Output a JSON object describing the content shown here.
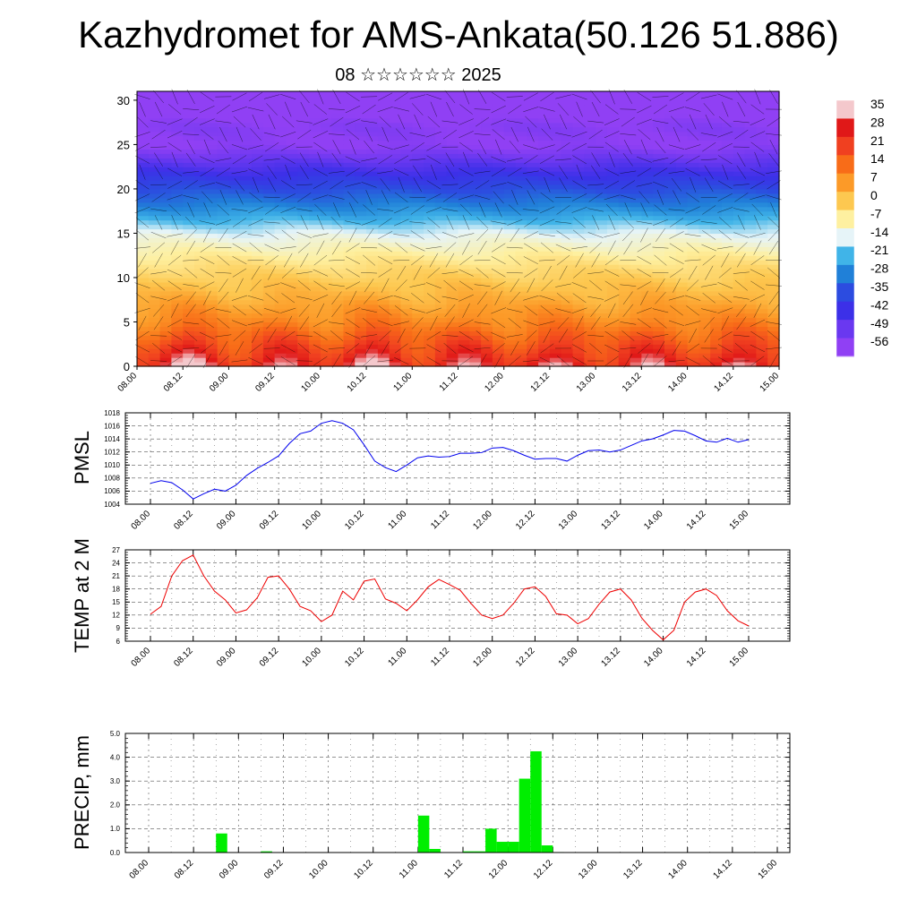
{
  "title": "Kazhydromet for AMS-Ankata(50.126 51.886)",
  "subtitle": "08 ☆☆☆☆☆☆ 2025",
  "time_ticks": [
    "08.00",
    "08.12",
    "09.00",
    "09.12",
    "10.00",
    "10.12",
    "11.00",
    "11.12",
    "12.00",
    "12.12",
    "13.00",
    "13.12",
    "14.00",
    "14.12",
    "15.00"
  ],
  "colors": {
    "pmsl_line": "#0000ee",
    "temp_line": "#ee0000",
    "precip_bar": "#00ee00",
    "frame": "#000000",
    "grid": "#555555"
  },
  "chart_data": [
    {
      "id": "cross-section",
      "type": "heatmap",
      "x_ticks_ref": "time_ticks",
      "y_ticks": [
        "0",
        "5",
        "10",
        "15",
        "20",
        "25",
        "30"
      ],
      "ylim": [
        0,
        31
      ],
      "colorbar_labels": [
        "35",
        "28",
        "21",
        "14",
        "7",
        "0",
        "-7",
        "-14",
        "-21",
        "-28",
        "-35",
        "-42",
        "-49",
        "-56"
      ],
      "colorbar_colors": [
        "#f4c8cc",
        "#e01818",
        "#f04020",
        "#f86c18",
        "#fc9a28",
        "#fdc850",
        "#fef0a0",
        "#e6f4f8",
        "#40b4e8",
        "#2080d8",
        "#2c4ce0",
        "#3c30e8",
        "#6a38f0",
        "#9040f4"
      ],
      "profile_levels_km": [
        0,
        1,
        3,
        5,
        8,
        11,
        13,
        15,
        17,
        19,
        21,
        23,
        25,
        27,
        29,
        31
      ],
      "profile_temps_c": [
        31,
        27,
        20,
        13,
        6,
        0,
        -5,
        -11,
        -20,
        -28,
        -36,
        -44,
        -53,
        -51,
        -56,
        -58
      ],
      "diurnal_amplitude_c": [
        8,
        6,
        4,
        2,
        1,
        0,
        0,
        0,
        0,
        0,
        0,
        0,
        0,
        0,
        0,
        0
      ],
      "warm_peaks": [
        "08.12",
        "10.12"
      ]
    },
    {
      "id": "pmsl",
      "type": "line",
      "ylabel": "PMSL",
      "y_ticks": [
        "1004",
        "1006",
        "1008",
        "1010",
        "1012",
        "1014",
        "1016",
        "1018"
      ],
      "ylim": [
        1004,
        1018
      ],
      "x": [
        0,
        3,
        6,
        9,
        12,
        15,
        18,
        21,
        24,
        27,
        30,
        33,
        36,
        39,
        42,
        45,
        48,
        51,
        54,
        57,
        60,
        63,
        66,
        69,
        72,
        75,
        78,
        81,
        84,
        87,
        90,
        93,
        96,
        99,
        102,
        105,
        108,
        111,
        114,
        117,
        120,
        123,
        126,
        129,
        132,
        135,
        138,
        141,
        144,
        147,
        150,
        153,
        156,
        159,
        162,
        165,
        168
      ],
      "values": [
        1007.2,
        1007.6,
        1007.3,
        1006.2,
        1004.8,
        1005.6,
        1006.3,
        1006.0,
        1006.9,
        1008.4,
        1009.5,
        1010.4,
        1011.4,
        1013.3,
        1014.8,
        1015.2,
        1016.4,
        1016.8,
        1016.4,
        1015.4,
        1013.1,
        1010.6,
        1009.6,
        1009.0,
        1010.0,
        1011.1,
        1011.4,
        1011.2,
        1011.3,
        1011.8,
        1011.8,
        1011.9,
        1012.6,
        1012.7,
        1012.2,
        1011.5,
        1010.9,
        1011.0,
        1011.0,
        1010.6,
        1011.5,
        1012.2,
        1012.3,
        1012.0,
        1012.3,
        1013.0,
        1013.7,
        1014.0,
        1014.6,
        1015.3,
        1015.2,
        1014.5,
        1013.7,
        1013.5,
        1014.1,
        1013.5,
        1013.9
      ],
      "x_ticks_ref": "time_ticks",
      "x_unit_hours_from": "08.00"
    },
    {
      "id": "temp2m",
      "type": "line",
      "ylabel": "TEMP at 2 M",
      "y_ticks": [
        "6",
        "9",
        "12",
        "15",
        "18",
        "21",
        "24",
        "27"
      ],
      "ylim": [
        6,
        27
      ],
      "x": [
        0,
        3,
        6,
        9,
        12,
        15,
        18,
        21,
        24,
        27,
        30,
        33,
        36,
        39,
        42,
        45,
        48,
        51,
        54,
        57,
        60,
        63,
        66,
        69,
        72,
        75,
        78,
        81,
        84,
        87,
        90,
        93,
        96,
        99,
        102,
        105,
        108,
        111,
        114,
        117,
        120,
        123,
        126,
        129,
        132,
        135,
        138,
        141,
        144,
        147,
        150,
        153,
        156,
        159,
        162,
        165,
        168
      ],
      "values": [
        12.2,
        14.0,
        21.0,
        24.5,
        25.8,
        21.0,
        17.5,
        15.5,
        12.5,
        13.2,
        16.0,
        20.7,
        21.0,
        18.0,
        14.0,
        13.0,
        10.5,
        12.0,
        17.5,
        15.5,
        19.8,
        20.3,
        15.7,
        14.7,
        13.0,
        15.5,
        18.5,
        20.2,
        19.0,
        17.7,
        14.7,
        12.0,
        11.2,
        12.0,
        14.7,
        18.0,
        18.5,
        16.3,
        12.3,
        12.0,
        10.0,
        11.2,
        14.5,
        17.3,
        18.0,
        15.5,
        11.3,
        8.5,
        6.3,
        8.5,
        15.0,
        17.3,
        18.0,
        16.5,
        13.0,
        10.7,
        9.5
      ],
      "x_ticks_ref": "time_ticks",
      "x_unit_hours_from": "08.00"
    },
    {
      "id": "precip",
      "type": "bar",
      "ylabel": "PRECIP, mm",
      "y_ticks": [
        "0.0",
        "1.0",
        "2.0",
        "3.0",
        "4.0",
        "5.0"
      ],
      "ylim": [
        0,
        5
      ],
      "bar_width_hours": 3,
      "x": [
        18,
        30,
        72,
        75,
        84,
        87,
        90,
        93,
        96,
        99,
        102,
        105,
        108
      ],
      "values": [
        0.8,
        0.05,
        1.55,
        0.15,
        0.05,
        0.05,
        1.0,
        0.45,
        0.45,
        3.1,
        4.25,
        0.3,
        0.02
      ],
      "x_ticks_ref": "time_ticks",
      "x_unit_hours_from": "08.00"
    }
  ]
}
